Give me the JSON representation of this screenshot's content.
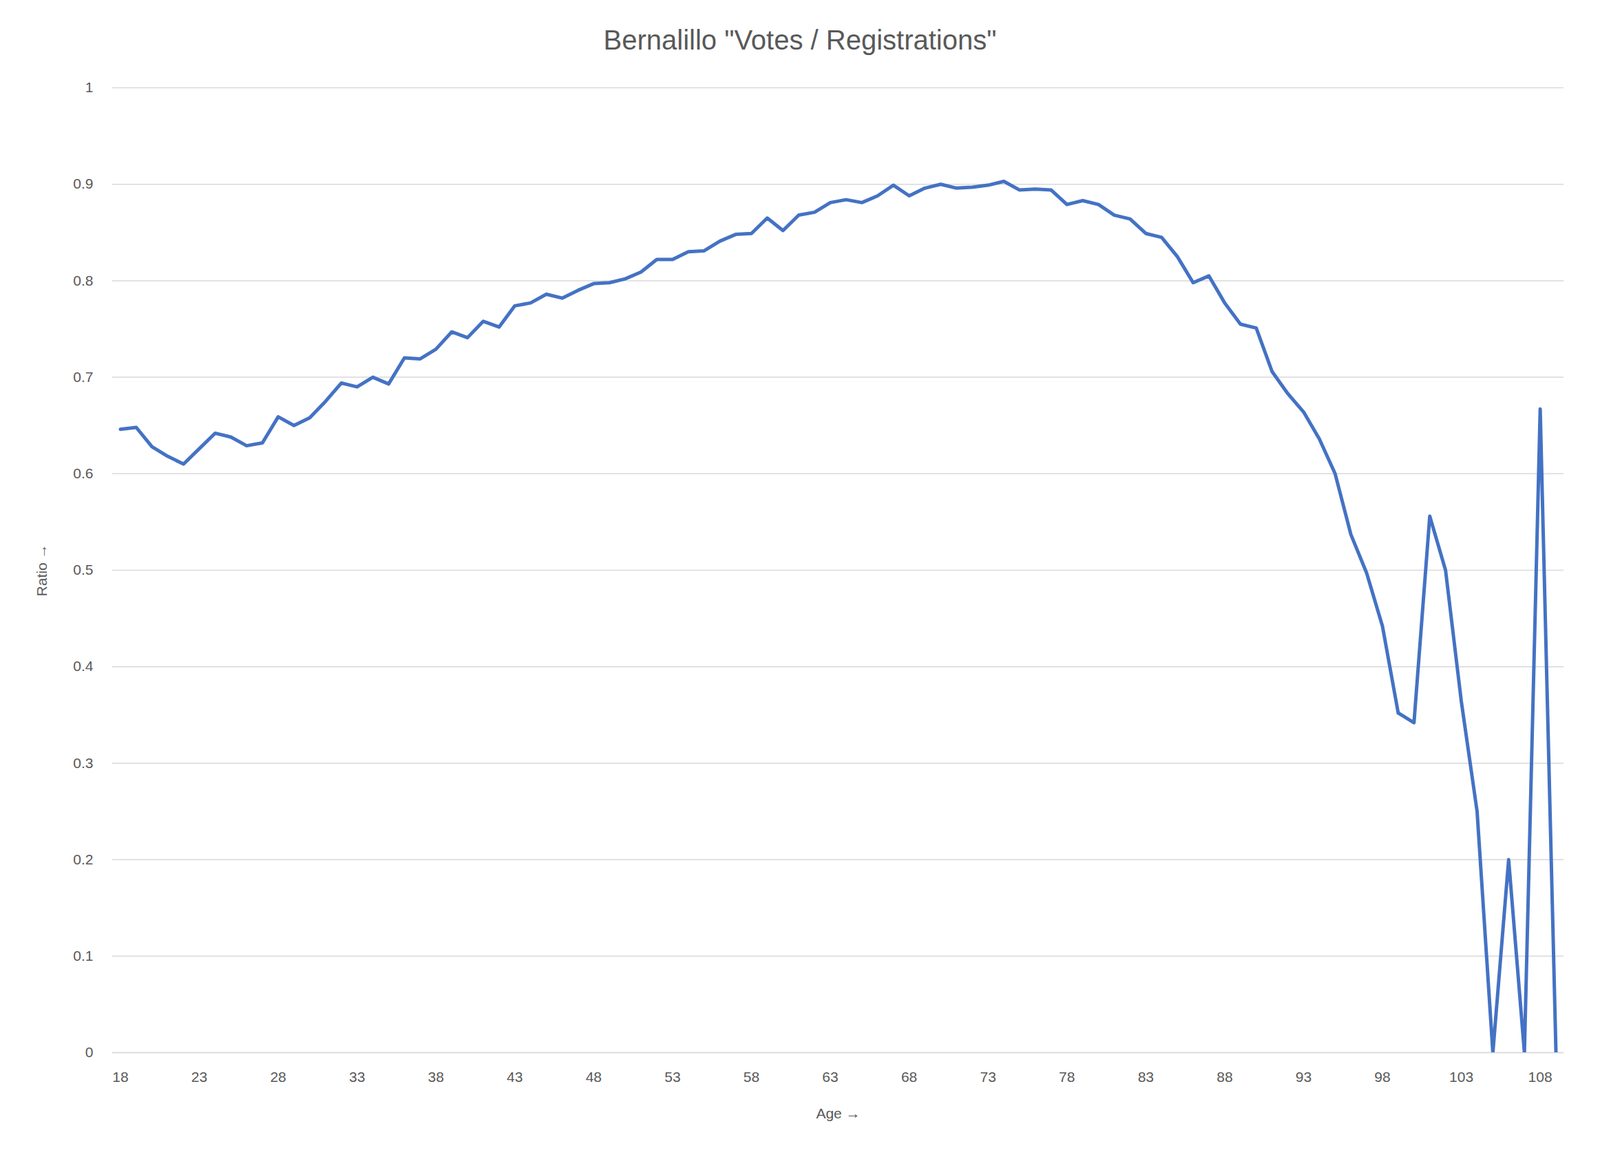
{
  "chart_data": {
    "type": "line",
    "title": "Bernalillo \"Votes / Registrations\"",
    "x_label": "Age",
    "y_label": "Ratio",
    "x": [
      18,
      19,
      20,
      21,
      22,
      23,
      24,
      25,
      26,
      27,
      28,
      29,
      30,
      31,
      32,
      33,
      34,
      35,
      36,
      37,
      38,
      39,
      40,
      41,
      42,
      43,
      44,
      45,
      46,
      47,
      48,
      49,
      50,
      51,
      52,
      53,
      54,
      55,
      56,
      57,
      58,
      59,
      60,
      61,
      62,
      63,
      64,
      65,
      66,
      67,
      68,
      69,
      70,
      71,
      72,
      73,
      74,
      75,
      76,
      77,
      78,
      79,
      80,
      81,
      82,
      83,
      84,
      85,
      86,
      87,
      88,
      89,
      90,
      91,
      92,
      93,
      94,
      95,
      96,
      97,
      98,
      99,
      100,
      101,
      102,
      103,
      104,
      105,
      106,
      107,
      108,
      109
    ],
    "values": [
      0.646,
      0.648,
      0.628,
      0.618,
      0.61,
      0.626,
      0.642,
      0.638,
      0.629,
      0.632,
      0.659,
      0.65,
      0.658,
      0.675,
      0.694,
      0.69,
      0.7,
      0.693,
      0.72,
      0.719,
      0.729,
      0.747,
      0.741,
      0.758,
      0.752,
      0.774,
      0.777,
      0.786,
      0.782,
      0.79,
      0.797,
      0.798,
      0.802,
      0.809,
      0.822,
      0.822,
      0.83,
      0.831,
      0.841,
      0.848,
      0.849,
      0.865,
      0.852,
      0.868,
      0.871,
      0.881,
      0.884,
      0.881,
      0.888,
      0.899,
      0.888,
      0.896,
      0.9,
      0.896,
      0.897,
      0.899,
      0.903,
      0.894,
      0.895,
      0.894,
      0.879,
      0.883,
      0.879,
      0.868,
      0.864,
      0.849,
      0.845,
      0.825,
      0.798,
      0.805,
      0.777,
      0.755,
      0.751,
      0.706,
      0.683,
      0.664,
      0.636,
      0.6,
      0.537,
      0.497,
      0.442,
      0.352,
      0.342,
      0.556,
      0.5,
      0.364,
      0.25,
      0,
      0.2,
      0,
      0.667,
      0
    ],
    "color": "#4472c4",
    "xlim": [
      17.5,
      109.5
    ],
    "xticks": [
      18,
      23,
      28,
      33,
      38,
      43,
      48,
      53,
      58,
      63,
      68,
      73,
      78,
      83,
      88,
      93,
      98,
      103,
      108
    ],
    "ylim": [
      0,
      1
    ],
    "yticks": [
      0,
      0.1,
      0.2,
      0.3,
      0.4,
      0.5,
      0.6,
      0.7,
      0.8,
      0.9,
      1
    ],
    "grid": true
  }
}
